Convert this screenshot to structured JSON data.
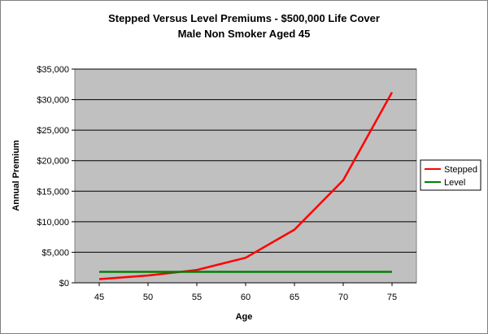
{
  "chart_data": {
    "type": "line",
    "title": "Stepped Versus Level Premiums - $500,000 Life Cover",
    "subtitle": "Male Non Smoker Aged 45",
    "xlabel": "Age",
    "ylabel": "Annual Premium",
    "x": [
      45,
      50,
      55,
      60,
      65,
      70,
      75
    ],
    "xlim": [
      45,
      75
    ],
    "ylim": [
      0,
      35000
    ],
    "y_ticks": [
      0,
      5000,
      10000,
      15000,
      20000,
      25000,
      30000,
      35000
    ],
    "y_tick_labels": [
      "$0",
      "$5,000",
      "$10,000",
      "$15,000",
      "$20,000",
      "$25,000",
      "$30,000",
      "$35,000"
    ],
    "x_tick_labels": [
      "45",
      "50",
      "55",
      "60",
      "65",
      "70",
      "75"
    ],
    "grid": "horizontal",
    "legend": "right",
    "plot_background": "#c0c0c0",
    "series": [
      {
        "name": "Stepped",
        "color": "#ff0000",
        "values": [
          600,
          1200,
          2100,
          4100,
          8700,
          16800,
          31200
        ]
      },
      {
        "name": "Level",
        "color": "#008000",
        "values": [
          1800,
          1800,
          1800,
          1800,
          1800,
          1800,
          1800
        ]
      }
    ]
  }
}
